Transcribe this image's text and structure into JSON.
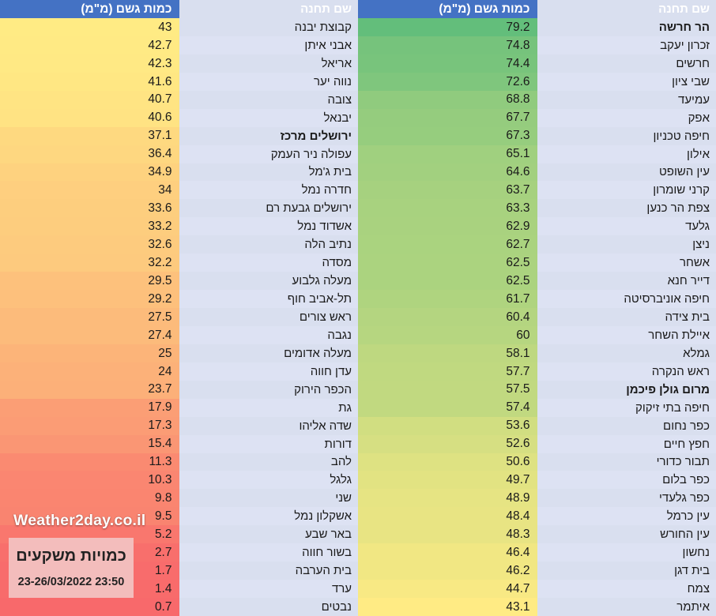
{
  "headers": {
    "station": "שם תחנה",
    "amount": "כמות גשם (מ\"מ)"
  },
  "overlay": {
    "watermark": "Weather2day.co.il",
    "caption_title": "כמויות משקעים",
    "caption_date": "23-26/03/2022 23:50"
  },
  "colors": {
    "header_bg": "#4472C4",
    "header_text": "#FFFFFF",
    "name_col_bg_odd": "#D9DFEF",
    "name_col_bg_even": "#DDE2F3",
    "caption_box_bg": "#F3BDBC",
    "watermark_text": "#FFFFFF",
    "scale_min": "#F8696B",
    "scale_mid": "#FFEB84",
    "scale_max": "#63BE7B"
  },
  "chart_data": {
    "type": "table",
    "title": "כמויות משקעים 23-26/03/2022 23:50",
    "color_scale": {
      "min_value": 0.7,
      "mid_value": 43.05,
      "max_value": 79.2,
      "min_color": "#F8696B",
      "mid_color": "#FFEB84",
      "max_color": "#63BE7B"
    },
    "tables": [
      {
        "side": "right",
        "columns": [
          "שם תחנה",
          "כמות גשם (מ\"מ)"
        ],
        "rows": [
          {
            "station": "הר חרשה",
            "amount": 79.2,
            "bold": true
          },
          {
            "station": "זכרון יעקב",
            "amount": 74.8
          },
          {
            "station": "חרשים",
            "amount": 74.4
          },
          {
            "station": "שבי ציון",
            "amount": 72.6
          },
          {
            "station": "עמיעד",
            "amount": 68.8
          },
          {
            "station": "אפק",
            "amount": 67.7
          },
          {
            "station": "חיפה טכניון",
            "amount": 67.3
          },
          {
            "station": "אילון",
            "amount": 65.1
          },
          {
            "station": "עין השופט",
            "amount": 64.6
          },
          {
            "station": "קרני שומרון",
            "amount": 63.7
          },
          {
            "station": "צפת הר כנען",
            "amount": 63.3
          },
          {
            "station": "גלעד",
            "amount": 62.9
          },
          {
            "station": "ניצן",
            "amount": 62.7
          },
          {
            "station": "אשחר",
            "amount": 62.5
          },
          {
            "station": "דייר חנא",
            "amount": 62.5
          },
          {
            "station": "חיפה אוניברסיטה",
            "amount": 61.7
          },
          {
            "station": "בית צידה",
            "amount": 60.4
          },
          {
            "station": "איילת השחר",
            "amount": 60
          },
          {
            "station": "גמלא",
            "amount": 58.1
          },
          {
            "station": "ראש הנקרה",
            "amount": 57.7
          },
          {
            "station": "מרום גולן פיכמן",
            "amount": 57.5,
            "bold": true
          },
          {
            "station": "חיפה בתי זיקוק",
            "amount": 57.4
          },
          {
            "station": "כפר נחום",
            "amount": 53.6
          },
          {
            "station": "חפץ חיים",
            "amount": 52.6
          },
          {
            "station": "תבור כדורי",
            "amount": 50.6
          },
          {
            "station": "כפר בלום",
            "amount": 49.7
          },
          {
            "station": "כפר גלעדי",
            "amount": 48.9
          },
          {
            "station": "עין כרמל",
            "amount": 48.4
          },
          {
            "station": "עין החורש",
            "amount": 48.3
          },
          {
            "station": "נחשון",
            "amount": 46.4
          },
          {
            "station": "בית דגן",
            "amount": 46.2
          },
          {
            "station": "צמח",
            "amount": 44.7
          },
          {
            "station": "איתמר",
            "amount": 43.1
          }
        ]
      },
      {
        "side": "left",
        "columns": [
          "שם תחנה",
          "כמות גשם (מ\"מ)"
        ],
        "rows": [
          {
            "station": "קבוצת יבנה",
            "amount": 43
          },
          {
            "station": "אבני איתן",
            "amount": 42.7
          },
          {
            "station": "אריאל",
            "amount": 42.3
          },
          {
            "station": "נווה יער",
            "amount": 41.6
          },
          {
            "station": "צובה",
            "amount": 40.7
          },
          {
            "station": "יבנאל",
            "amount": 40.6
          },
          {
            "station": "ירושלים מרכז",
            "amount": 37.1,
            "bold": true
          },
          {
            "station": "עפולה ניר העמק",
            "amount": 36.4
          },
          {
            "station": "בית ג'מל",
            "amount": 34.9
          },
          {
            "station": "חדרה נמל",
            "amount": 34
          },
          {
            "station": "ירושלים גבעת רם",
            "amount": 33.6
          },
          {
            "station": "אשדוד נמל",
            "amount": 33.2
          },
          {
            "station": "נתיב הלה",
            "amount": 32.6
          },
          {
            "station": "מסדה",
            "amount": 32.2
          },
          {
            "station": "מעלה גלבוע",
            "amount": 29.5
          },
          {
            "station": "תל-אביב חוף",
            "amount": 29.2
          },
          {
            "station": "ראש צורים",
            "amount": 27.5
          },
          {
            "station": "נגבה",
            "amount": 27.4
          },
          {
            "station": "מעלה אדומים",
            "amount": 25
          },
          {
            "station": "עדן חווה",
            "amount": 24
          },
          {
            "station": "הכפר הירוק",
            "amount": 23.7
          },
          {
            "station": "גת",
            "amount": 17.9
          },
          {
            "station": "שדה אליהו",
            "amount": 17.3
          },
          {
            "station": "דורות",
            "amount": 15.4
          },
          {
            "station": "להב",
            "amount": 11.3
          },
          {
            "station": "גלגל",
            "amount": 10.3
          },
          {
            "station": "שני",
            "amount": 9.8
          },
          {
            "station": "אשקלון נמל",
            "amount": 9.5
          },
          {
            "station": "באר שבע",
            "amount": 5.2
          },
          {
            "station": "בשור חווה",
            "amount": 2.7
          },
          {
            "station": "בית הערבה",
            "amount": 1.7
          },
          {
            "station": "ערד",
            "amount": 1.4
          },
          {
            "station": "נבטים",
            "amount": 0.7
          }
        ]
      }
    ]
  }
}
